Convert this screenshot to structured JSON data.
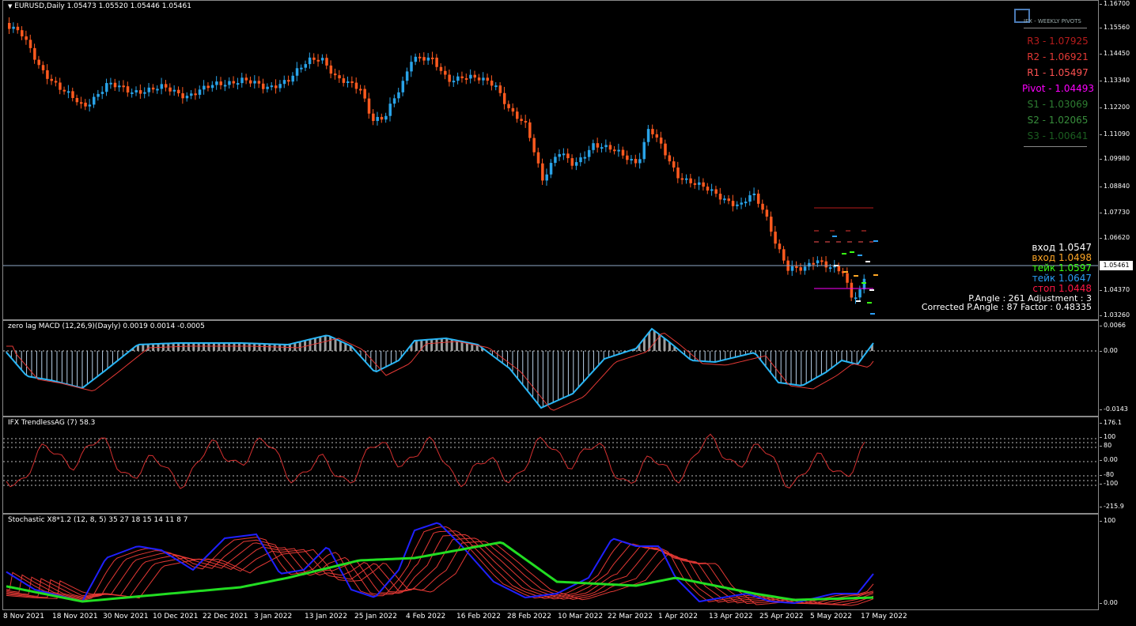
{
  "symbol_line": "EURUSD,Daily  1.05473 1.05520 1.05446 1.05461",
  "colors": {
    "bull": "#29a3e8",
    "bear": "#ff5a1f",
    "macd_line": "#29b6f6",
    "signal": "#e53935",
    "stoch_main": "#2020ff",
    "stoch_slow": "#22dd22"
  },
  "price_axis": [
    "1.16700",
    "1.15560",
    "1.14450",
    "1.13340",
    "1.12200",
    "1.11090",
    "1.09980",
    "1.08840",
    "1.07730",
    "1.06620",
    "1.05461",
    "1.04370",
    "1.03260"
  ],
  "current_price": "1.05461",
  "pivots": {
    "logo": "IFX - WEEKLY PIVOTS",
    "items": [
      {
        "label": "R3 - 1.07925",
        "color": "#b71c1c"
      },
      {
        "label": "R2 - 1.06921",
        "color": "#e53935"
      },
      {
        "label": "R1 - 1.05497",
        "color": "#ff5252"
      },
      {
        "label": "Pivot - 1.04493",
        "color": "#ff00ff"
      },
      {
        "label": "S1 - 1.03069",
        "color": "#2e7d32"
      },
      {
        "label": "S2 - 1.02065",
        "color": "#388e3c"
      },
      {
        "label": "S3 - 1.00641",
        "color": "#1b5e20"
      }
    ]
  },
  "signals": [
    {
      "label": "вход  1.0547",
      "color": "#ffffff"
    },
    {
      "label": "вход  1.0498",
      "color": "#ffa726"
    },
    {
      "label": "тейк  1.0597",
      "color": "#39ff14"
    },
    {
      "label": "тейк  1.0647",
      "color": "#2a9df4"
    },
    {
      "label": "стоп  1.0448",
      "color": "#ff1744"
    }
  ],
  "angle_info": {
    "line1": "P.Angle : 261   Adjustment : 3",
    "line2": "Corrected P.Angle : 87   Factor : 0.48335"
  },
  "macd": {
    "label": "zero lag MACD (12,26,9)(Dayly) 0.0019 0.0014 -0.0005",
    "axis": [
      "0.0066",
      "0.00",
      "-0.0143"
    ]
  },
  "trendless": {
    "label": "IFX TrendlessAG (7) 58.3",
    "axis": [
      "176.1",
      "100",
      "80",
      "0.00",
      "-80",
      "-100",
      "-215.9"
    ]
  },
  "stochastic": {
    "label": "Stochastic X8*1.2 (12, 8, 5) 35 27 18 15 14 11 8 7",
    "axis": [
      "100",
      "0.00"
    ]
  },
  "dates": [
    "8 Nov 2021",
    "18 Nov 2021",
    "30 Nov 2021",
    "10 Dec 2021",
    "22 Dec 2021",
    "3 Jan 2022",
    "13 Jan 2022",
    "25 Jan 2022",
    "4 Feb 2022",
    "16 Feb 2022",
    "28 Feb 2022",
    "10 Mar 2022",
    "22 Mar 2022",
    "1 Apr 2022",
    "13 Apr 2022",
    "25 Apr 2022",
    "5 May 2022",
    "17 May 2022"
  ]
}
